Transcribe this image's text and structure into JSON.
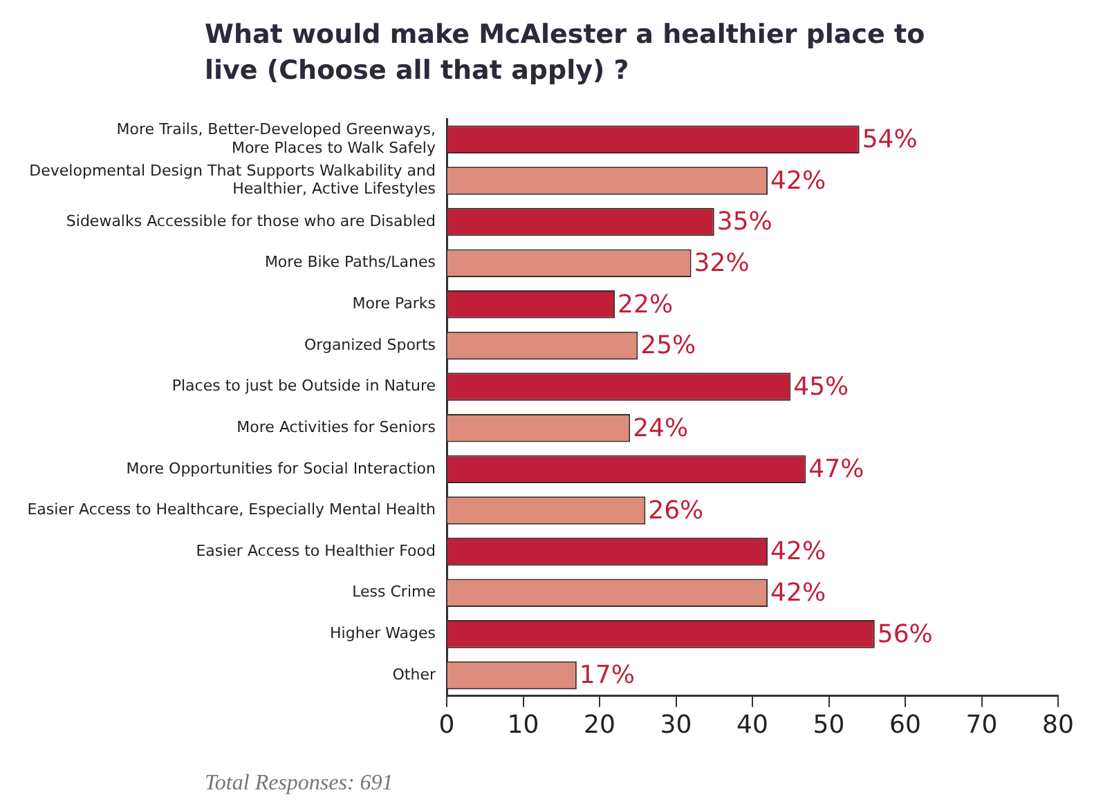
{
  "chart_data": {
    "type": "bar",
    "orientation": "horizontal",
    "title": "What would make McAlester a healthier place to live (Choose all that apply) ?",
    "categories": [
      "More Trails, Better-Developed Greenways,\nMore Places to Walk Safely",
      "Developmental Design That Supports Walkability and\nHealthier, Active Lifestyles",
      "Sidewalks Accessible for those who are Disabled",
      "More Bike Paths/Lanes",
      "More Parks",
      "Organized Sports",
      "Places to just be Outside in Nature",
      "More Activities for Seniors",
      "More Opportunities for Social Interaction",
      "Easier Access to Healthcare, Especially Mental Health",
      "Easier Access to Healthier Food",
      "Less Crime",
      "Higher Wages",
      "Other"
    ],
    "values": [
      54,
      42,
      35,
      32,
      22,
      25,
      45,
      24,
      47,
      26,
      42,
      42,
      56,
      17
    ],
    "value_labels": [
      "54%",
      "42%",
      "35%",
      "32%",
      "22%",
      "25%",
      "45%",
      "24%",
      "47%",
      "26%",
      "42%",
      "42%",
      "56%",
      "17%"
    ],
    "colors": [
      "#c01f3a",
      "#de8c7c",
      "#c01f3a",
      "#de8c7c",
      "#c01f3a",
      "#de8c7c",
      "#c01f3a",
      "#de8c7c",
      "#c01f3a",
      "#de8c7c",
      "#c01f3a",
      "#de8c7c",
      "#c01f3a",
      "#de8c7c"
    ],
    "xlim": [
      0,
      80
    ],
    "xticks": [
      0,
      10,
      20,
      30,
      40,
      50,
      60,
      70,
      80
    ],
    "grid": false,
    "legend": false,
    "annotations": [
      "Total Responses: 691"
    ]
  }
}
